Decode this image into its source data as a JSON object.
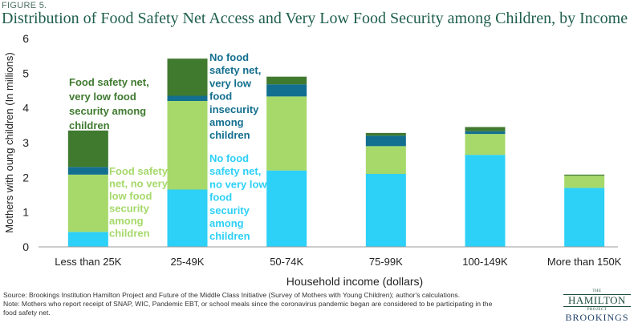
{
  "header": {
    "figure_label": "FIGURE 5.",
    "title": "Distribution of Food Safety Net Access and Very Low Food Security among Children, by Income"
  },
  "chart_data": {
    "type": "bar",
    "stacked": true,
    "categories": [
      "Less than 25K",
      "25-49K",
      "50-74K",
      "75-99K",
      "100-149K",
      "More than 150K"
    ],
    "series": [
      {
        "key": "no_sn_no_vlfs",
        "color": "#2dd0f6",
        "values": [
          0.43,
          1.65,
          2.2,
          2.1,
          2.65,
          1.7
        ]
      },
      {
        "key": "sn_no_vlfs",
        "color": "#a6d96a",
        "values": [
          1.65,
          2.55,
          2.13,
          0.8,
          0.6,
          0.35
        ]
      },
      {
        "key": "no_sn_vlfs",
        "color": "#136f8f",
        "values": [
          0.22,
          0.15,
          0.35,
          0.3,
          0.08,
          0.0
        ]
      },
      {
        "key": "sn_vlfs",
        "color": "#3f7a2f",
        "values": [
          1.05,
          1.07,
          0.22,
          0.08,
          0.12,
          0.03
        ]
      }
    ],
    "annotations": {
      "sn_vlfs": [
        "Food safety net,",
        "very low food",
        "security among",
        "children"
      ],
      "sn_no_vlfs": [
        "Food safety",
        "net, no very",
        "low food",
        "security",
        "among",
        "children"
      ],
      "no_sn_vlfs": [
        "No food",
        "safety net,",
        "very low",
        "food",
        "insecurity",
        "among",
        "children"
      ],
      "no_sn_no_vlfs": [
        "No food",
        "safety net,",
        "no very low",
        "food",
        "security",
        "among",
        "children"
      ]
    },
    "ylabel": "Mothers with oung children (In millions)",
    "xlabel": "Household income (dollars)",
    "ylim": [
      0,
      6
    ],
    "yticks": [
      0,
      1,
      2,
      3,
      4,
      5,
      6
    ],
    "grid": false,
    "legend": "none"
  },
  "footer": {
    "source": "Source: Brookings Institution Hamilton Project and Future of the Middle Class Initiative (Survey of Mothers with Young Children); author's calculations.",
    "note_line1": "Note: Mothers who report receipt of SNAP, WIC, Pandemic EBT, or school meals since the coronavirus pandemic began are considered to be participating in the",
    "note_line2": "food safety net."
  },
  "logo": {
    "the": "THE",
    "hamilton": "HAMILTON",
    "project": "PROJECT",
    "brookings": "BROOKINGS"
  }
}
